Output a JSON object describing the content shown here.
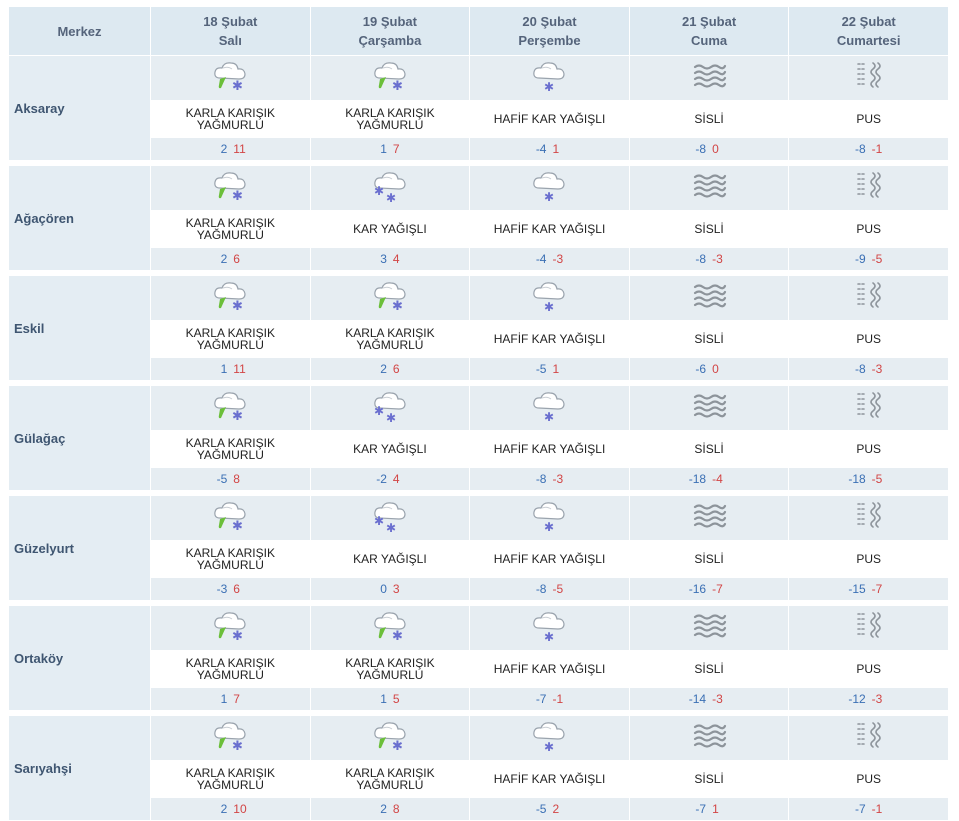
{
  "header": {
    "merkez_label": "Merkez",
    "days": [
      {
        "date": "18 Şubat",
        "weekday": "Salı"
      },
      {
        "date": "19 Şubat",
        "weekday": "Çarşamba"
      },
      {
        "date": "20 Şubat",
        "weekday": "Perşembe"
      },
      {
        "date": "21 Şubat",
        "weekday": "Cuma"
      },
      {
        "date": "22 Şubat",
        "weekday": "Cumartesi"
      }
    ]
  },
  "colors": {
    "header_bg": "#dde9f1",
    "row_bg": "#e6edf2",
    "min_temp": "#3a6fb4",
    "max_temp": "#d24545",
    "city_text": "#3f5671"
  },
  "cities": [
    {
      "name": "Aksaray",
      "days": [
        {
          "icon": "sleet-icon",
          "desc": "KARLA KARIŞIK YAĞMURLU",
          "min": "2",
          "max": "11"
        },
        {
          "icon": "sleet-icon",
          "desc": "KARLA KARIŞIK YAĞMURLU",
          "min": "1",
          "max": "7"
        },
        {
          "icon": "light-snow-icon",
          "desc": "HAFİF KAR YAĞIŞLI",
          "min": "-4",
          "max": "1"
        },
        {
          "icon": "fog-icon",
          "desc": "SİSLİ",
          "min": "-8",
          "max": "0"
        },
        {
          "icon": "haze-icon",
          "desc": "PUS",
          "min": "-8",
          "max": "-1"
        }
      ]
    },
    {
      "name": "Ağaçören",
      "days": [
        {
          "icon": "sleet-icon",
          "desc": "KARLA KARIŞIK YAĞMURLU",
          "min": "2",
          "max": "6"
        },
        {
          "icon": "snow-icon",
          "desc": "KAR YAĞIŞLI",
          "min": "3",
          "max": "4"
        },
        {
          "icon": "light-snow-icon",
          "desc": "HAFİF KAR YAĞIŞLI",
          "min": "-4",
          "max": "-3"
        },
        {
          "icon": "fog-icon",
          "desc": "SİSLİ",
          "min": "-8",
          "max": "-3"
        },
        {
          "icon": "haze-icon",
          "desc": "PUS",
          "min": "-9",
          "max": "-5"
        }
      ]
    },
    {
      "name": "Eskil",
      "days": [
        {
          "icon": "sleet-icon",
          "desc": "KARLA KARIŞIK YAĞMURLU",
          "min": "1",
          "max": "11"
        },
        {
          "icon": "sleet-icon",
          "desc": "KARLA KARIŞIK YAĞMURLU",
          "min": "2",
          "max": "6"
        },
        {
          "icon": "light-snow-icon",
          "desc": "HAFİF KAR YAĞIŞLI",
          "min": "-5",
          "max": "1"
        },
        {
          "icon": "fog-icon",
          "desc": "SİSLİ",
          "min": "-6",
          "max": "0"
        },
        {
          "icon": "haze-icon",
          "desc": "PUS",
          "min": "-8",
          "max": "-3"
        }
      ]
    },
    {
      "name": "Gülağaç",
      "days": [
        {
          "icon": "sleet-icon",
          "desc": "KARLA KARIŞIK YAĞMURLU",
          "min": "-5",
          "max": "8"
        },
        {
          "icon": "snow-icon",
          "desc": "KAR YAĞIŞLI",
          "min": "-2",
          "max": "4"
        },
        {
          "icon": "light-snow-icon",
          "desc": "HAFİF KAR YAĞIŞLI",
          "min": "-8",
          "max": "-3"
        },
        {
          "icon": "fog-icon",
          "desc": "SİSLİ",
          "min": "-18",
          "max": "-4"
        },
        {
          "icon": "haze-icon",
          "desc": "PUS",
          "min": "-18",
          "max": "-5"
        }
      ]
    },
    {
      "name": "Güzelyurt",
      "days": [
        {
          "icon": "sleet-icon",
          "desc": "KARLA KARIŞIK YAĞMURLU",
          "min": "-3",
          "max": "6"
        },
        {
          "icon": "snow-icon",
          "desc": "KAR YAĞIŞLI",
          "min": "0",
          "max": "3"
        },
        {
          "icon": "light-snow-icon",
          "desc": "HAFİF KAR YAĞIŞLI",
          "min": "-8",
          "max": "-5"
        },
        {
          "icon": "fog-icon",
          "desc": "SİSLİ",
          "min": "-16",
          "max": "-7"
        },
        {
          "icon": "haze-icon",
          "desc": "PUS",
          "min": "-15",
          "max": "-7"
        }
      ]
    },
    {
      "name": "Ortaköy",
      "days": [
        {
          "icon": "sleet-icon",
          "desc": "KARLA KARIŞIK YAĞMURLU",
          "min": "1",
          "max": "7"
        },
        {
          "icon": "sleet-icon",
          "desc": "KARLA KARIŞIK YAĞMURLU",
          "min": "1",
          "max": "5"
        },
        {
          "icon": "light-snow-icon",
          "desc": "HAFİF KAR YAĞIŞLI",
          "min": "-7",
          "max": "-1"
        },
        {
          "icon": "fog-icon",
          "desc": "SİSLİ",
          "min": "-14",
          "max": "-3"
        },
        {
          "icon": "haze-icon",
          "desc": "PUS",
          "min": "-12",
          "max": "-3"
        }
      ]
    },
    {
      "name": "Sarıyahşi",
      "days": [
        {
          "icon": "sleet-icon",
          "desc": "KARLA KARIŞIK YAĞMURLU",
          "min": "2",
          "max": "10"
        },
        {
          "icon": "sleet-icon",
          "desc": "KARLA KARIŞIK YAĞMURLU",
          "min": "2",
          "max": "8"
        },
        {
          "icon": "light-snow-icon",
          "desc": "HAFİF KAR YAĞIŞLI",
          "min": "-5",
          "max": "2"
        },
        {
          "icon": "fog-icon",
          "desc": "SİSLİ",
          "min": "-7",
          "max": "1"
        },
        {
          "icon": "haze-icon",
          "desc": "PUS",
          "min": "-7",
          "max": "-1"
        }
      ]
    }
  ]
}
